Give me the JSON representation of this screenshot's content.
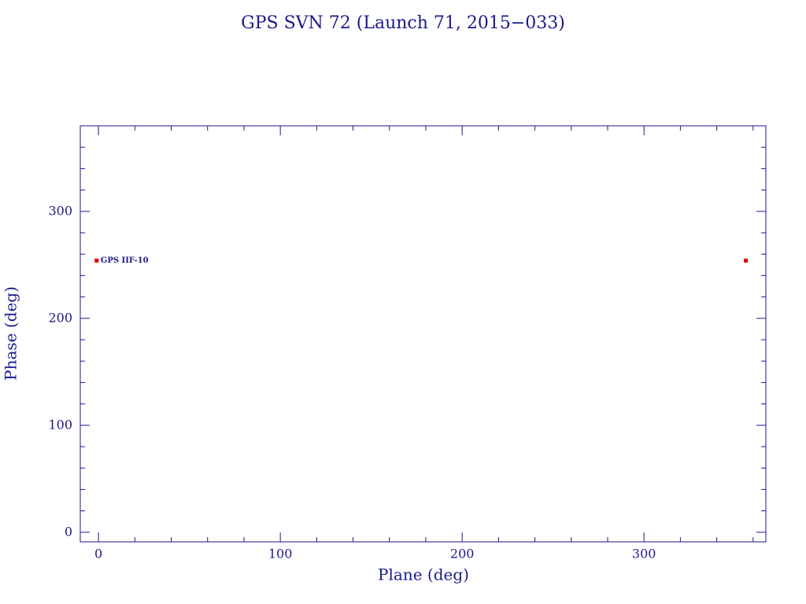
{
  "chart_data": {
    "type": "scatter",
    "title": "GPS SVN 72 (Launch 71, 2015−033)",
    "x_label": "Plane (deg)",
    "y_label": "Phase (deg)",
    "xlim": [
      -10,
      367
    ],
    "ylim": [
      -9,
      380
    ],
    "xticks": [
      0,
      100,
      200,
      300
    ],
    "yticks": [
      0,
      100,
      200,
      300
    ],
    "xminorticks": [
      20,
      40,
      60,
      80,
      120,
      140,
      160,
      180,
      220,
      240,
      260,
      280,
      320,
      340,
      360
    ],
    "yminorticks": [
      20,
      40,
      60,
      80,
      120,
      140,
      160,
      180,
      220,
      240,
      260,
      280,
      320,
      340,
      360
    ],
    "series": [
      {
        "name": "GPS IIF-10",
        "color": "#dd0000",
        "x": [
          -1,
          356
        ],
        "values": [
          254,
          254
        ]
      }
    ],
    "annotations": [
      {
        "text": "GPS IIF-10",
        "x": -1,
        "y": 254
      }
    ]
  }
}
